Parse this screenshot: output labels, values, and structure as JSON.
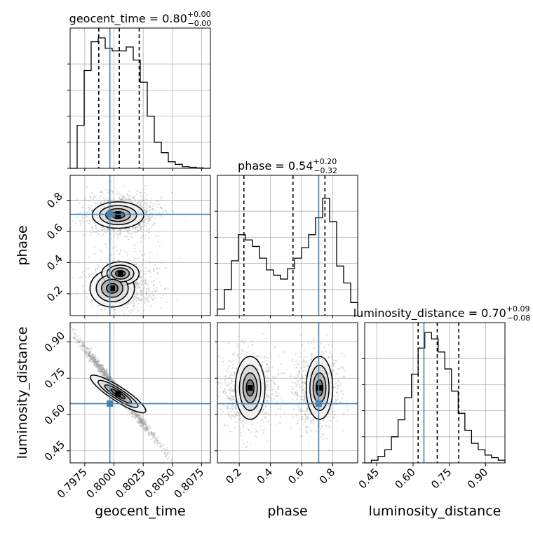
{
  "chart_data": {
    "type": "corner",
    "parameters": [
      "geocent_time",
      "phase",
      "luminosity_distance"
    ],
    "truth": {
      "geocent_time": 0.79965,
      "phase": 0.71,
      "luminosity_distance": 0.645
    },
    "truth_color": "#4682b4",
    "ranges": {
      "geocent_time": [
        0.79625,
        0.80825
      ],
      "phase": [
        0.06,
        0.96
      ],
      "luminosity_distance": [
        0.4,
        0.98
      ]
    },
    "titles": [
      {
        "name": "geocent_time",
        "median": "0.80",
        "plus": "+0.00",
        "minus": "−0.00"
      },
      {
        "name": "phase",
        "median": "0.54",
        "plus": "+0.20",
        "minus": "−0.32"
      },
      {
        "name": "luminosity_distance",
        "median": "0.70",
        "plus": "+0.09",
        "minus": "−0.08"
      }
    ],
    "quantiles": {
      "geocent_time": [
        0.7987,
        0.80046,
        0.80216
      ],
      "phase": [
        0.23,
        0.545,
        0.75
      ],
      "luminosity_distance": [
        0.621,
        0.7,
        0.789
      ]
    },
    "hist": {
      "geocent_time": {
        "range": [
          0.79625,
          0.80825
        ],
        "counts": [
          0,
          0.33,
          0.75,
          0.97,
          1.0,
          0.92,
          0.9,
          0.9,
          0.93,
          0.83,
          0.66,
          0.4,
          0.2,
          0.12,
          0.05,
          0.03,
          0.012,
          0.008,
          0.003,
          0
        ]
      },
      "phase": {
        "range": [
          0.06,
          0.96
        ],
        "counts": [
          0.05,
          0.2,
          0.42,
          0.62,
          0.58,
          0.53,
          0.44,
          0.35,
          0.31,
          0.28,
          0.36,
          0.44,
          0.52,
          0.62,
          0.75,
          0.9,
          0.72,
          0.38,
          0.25,
          0.1
        ]
      },
      "luminosity_distance": {
        "range": [
          0.4,
          0.98
        ],
        "counts": [
          0.0,
          0.02,
          0.05,
          0.1,
          0.2,
          0.33,
          0.5,
          0.68,
          0.88,
          1.0,
          0.95,
          0.85,
          0.72,
          0.55,
          0.38,
          0.25,
          0.15,
          0.1,
          0.06,
          0.04,
          0.02
        ]
      }
    },
    "ticks": {
      "geocent_time": [
        "0.7975",
        "0.8000",
        "0.8025",
        "0.8050",
        "0.8075"
      ],
      "phase": [
        "0.2",
        "0.4",
        "0.6",
        "0.8"
      ],
      "luminosity_distance": [
        "0.45",
        "0.60",
        "0.75",
        "0.90"
      ]
    },
    "axis_labels": {
      "x": [
        "geocent_time",
        "phase",
        "luminosity_distance"
      ],
      "y": [
        "phase",
        "luminosity_distance"
      ]
    }
  }
}
